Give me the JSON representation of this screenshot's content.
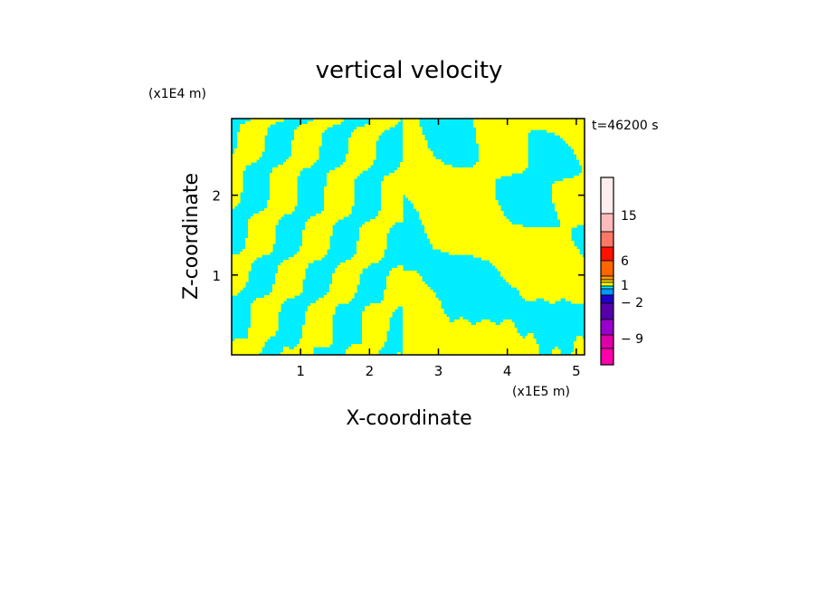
{
  "chart_data": {
    "type": "heatmap",
    "title": "vertical velocity",
    "time_label": "t=46200 s",
    "xlabel": "X-coordinate",
    "ylabel": "Z-coordinate",
    "x_unit": "(x1E5 m)",
    "y_unit": "(x1E4 m)",
    "xlim": [
      0,
      5.12
    ],
    "ylim": [
      0,
      2.96
    ],
    "xticks": [
      1,
      2,
      3,
      4,
      5
    ],
    "yticks": [
      1,
      2
    ],
    "xtick_labels": [
      "1",
      "2",
      "3",
      "4",
      "5"
    ],
    "ytick_labels": [
      "1",
      "2"
    ],
    "field_colors": {
      "negative": "#00eeff",
      "positive": "#ffff00"
    },
    "colorbar": {
      "levels": [
        {
          "color": "#ffeeee"
        },
        {
          "color": "#ffbbbb"
        },
        {
          "color": "#ff7766"
        },
        {
          "color": "#ff1100"
        },
        {
          "color": "#ff6600"
        },
        {
          "color": "#ff9900"
        },
        {
          "color": "#ffdd00"
        },
        {
          "color": "#ffff00"
        },
        {
          "color": "#00eeff"
        },
        {
          "color": "#0099ff"
        },
        {
          "color": "#2200cc"
        },
        {
          "color": "#5500aa"
        },
        {
          "color": "#9900cc"
        },
        {
          "color": "#dd00aa"
        },
        {
          "color": "#ff00aa"
        }
      ],
      "labels": [
        {
          "text": "15",
          "value": 15
        },
        {
          "text": "6",
          "value": 6
        },
        {
          "text": "1",
          "value": 1
        },
        {
          "text": "− 2",
          "value": -2
        },
        {
          "text": "− 9",
          "value": -9
        }
      ]
    }
  }
}
